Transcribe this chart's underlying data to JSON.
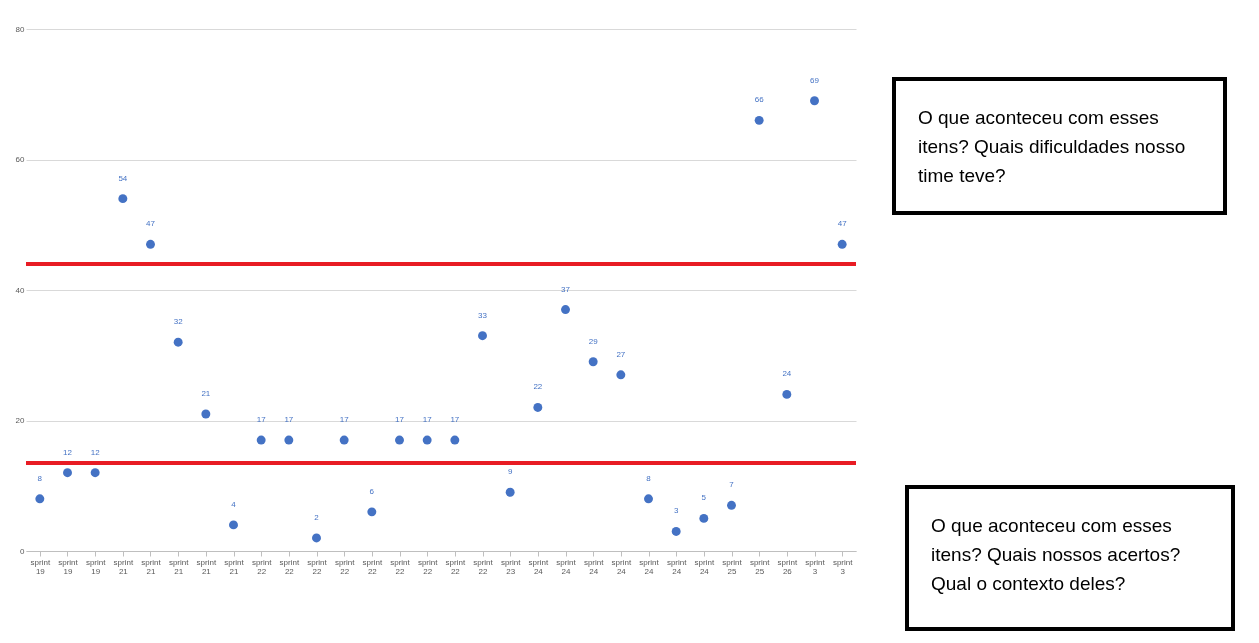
{
  "chart_data": {
    "type": "scatter",
    "categories": [
      "sprint 19",
      "sprint 19",
      "sprint 19",
      "sprint 21",
      "sprint 21",
      "sprint 21",
      "sprint 21",
      "sprint 21",
      "sprint 22",
      "sprint 22",
      "sprint 22",
      "sprint 22",
      "sprint 22",
      "sprint 22",
      "sprint 22",
      "sprint 22",
      "sprint 22",
      "sprint 23",
      "sprint 24",
      "sprint 24",
      "sprint 24",
      "sprint 24",
      "sprint 24",
      "sprint 24",
      "sprint 24",
      "sprint 25",
      "sprint 25",
      "sprint 26",
      "sprint 3",
      "sprint 3"
    ],
    "series": [
      {
        "color": "#4472c4",
        "values": [
          8,
          12,
          12,
          54,
          47,
          32,
          21,
          4,
          17,
          17,
          2,
          17,
          6,
          17,
          17,
          17,
          33,
          9,
          22,
          37,
          29,
          27,
          8,
          3,
          5,
          7,
          66,
          24,
          69,
          47
        ]
      }
    ],
    "ylim": [
      0,
      80
    ],
    "yticks": [
      0,
      20,
      40,
      60,
      80
    ],
    "grid": "y",
    "marker": "circle",
    "data_labels": true,
    "ref_lines": [
      {
        "axis": "y",
        "value": 44,
        "color": "#e81c24"
      },
      {
        "axis": "y",
        "value": 13.5,
        "color": "#e81c24"
      }
    ],
    "annotations": [
      "O que aconteceu com esses itens? Quais dificuldades nosso time teve?",
      "O que aconteceu com esses itens? Quais nossos acertos? Qual o contexto deles?"
    ]
  }
}
